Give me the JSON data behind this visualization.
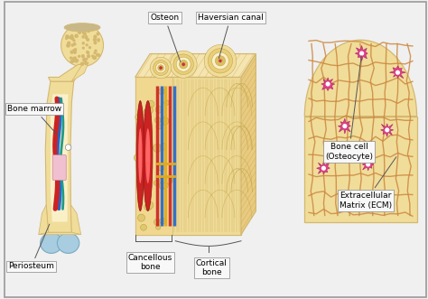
{
  "background_color": "#f0f0f0",
  "border_color": "#999999",
  "labels": {
    "bone_marrow": "Bone marrow",
    "periosteum": "Periosteum",
    "osteon": "Osteon",
    "haversian_canal": "Haversian canal",
    "cancellous_bone": "Cancellous\nbone",
    "cortical_bone": "Cortical\nbone",
    "bone_cell": "Bone cell\n(Osteocyte)",
    "ecm": "Extracellular\nMatrix (ECM)"
  },
  "bone_color": "#f0dd9a",
  "bone_dark": "#d4b870",
  "bone_light": "#faf0c8",
  "cartilage_color": "#a8cce0",
  "pink_cell_color": "#e0408a",
  "pink_cell_light": "#f090c0",
  "line_color": "#444444",
  "label_box_color": "#f8f8f8",
  "font_size": 6.5
}
